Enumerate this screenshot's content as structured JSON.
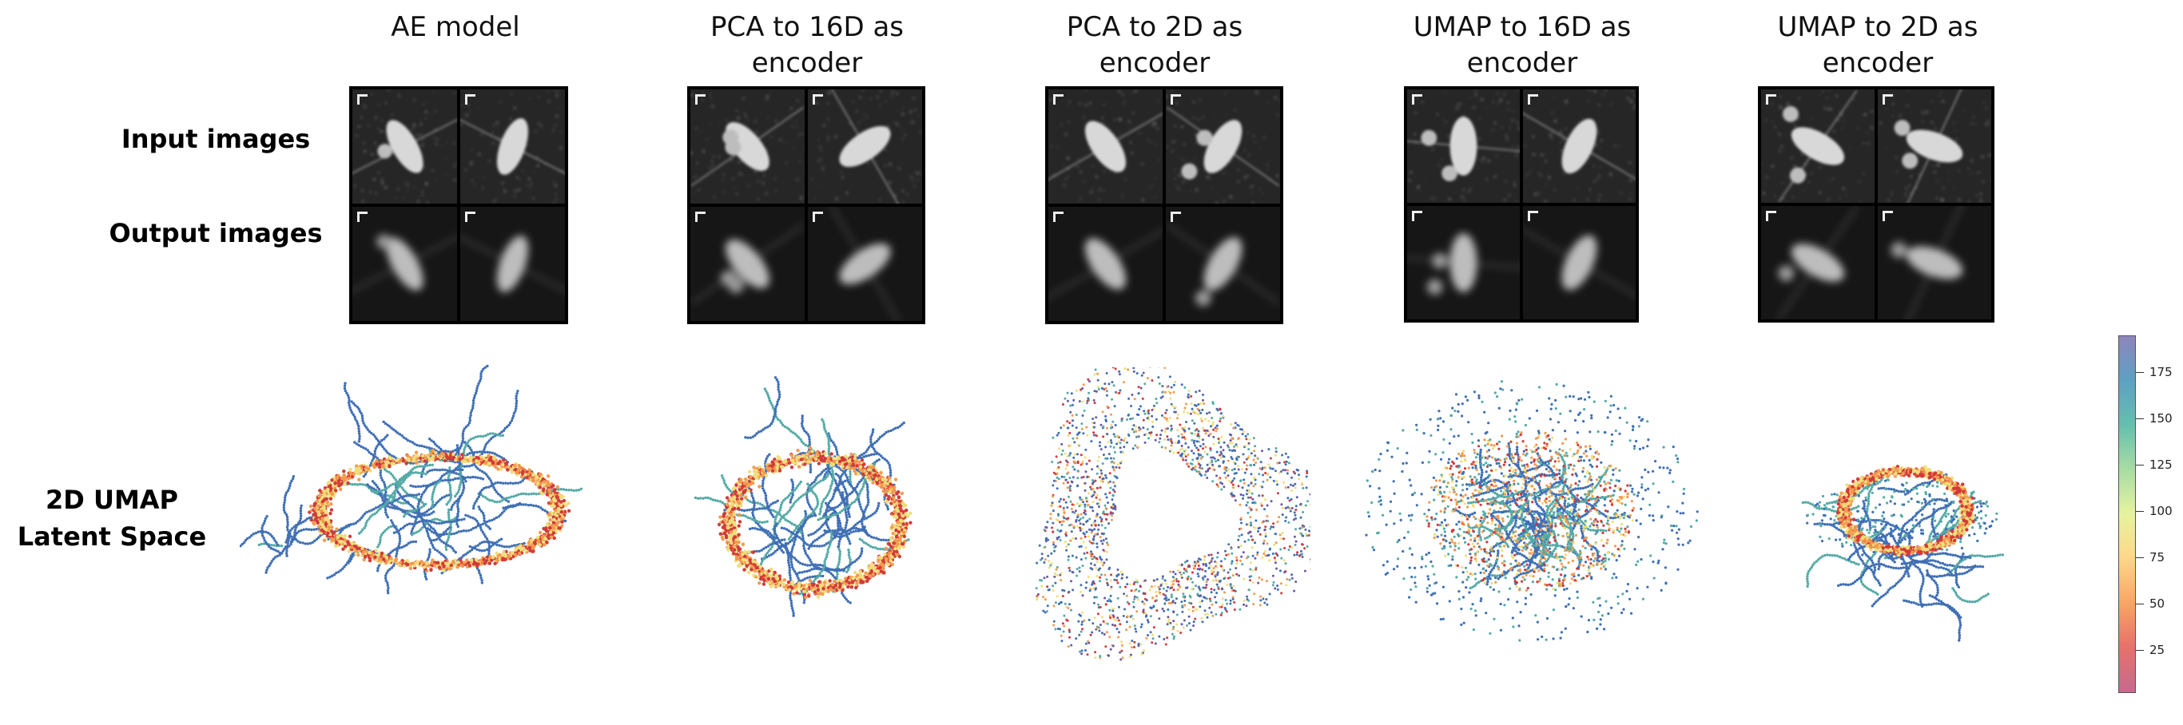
{
  "columns": [
    {
      "title_line1": "AE model",
      "title_line2": ""
    },
    {
      "title_line1": "PCA to 16D as",
      "title_line2": "encoder"
    },
    {
      "title_line1": "PCA to 2D as",
      "title_line2": "encoder"
    },
    {
      "title_line1": "UMAP to 16D as",
      "title_line2": "encoder"
    },
    {
      "title_line1": "UMAP to 2D as",
      "title_line2": "encoder"
    }
  ],
  "row_labels": {
    "input": "Input images",
    "output": "Output images",
    "latent_line1": "2D UMAP",
    "latent_line2": "Latent Space"
  },
  "colorbar": {
    "ticks": [
      "175",
      "150",
      "125",
      "100",
      "75",
      "50",
      "25"
    ],
    "colormap": "Spectral"
  },
  "colors": {
    "blue": "#3f6fb5",
    "teal": "#55aaa6",
    "yellow": "#f0de7a",
    "orange": "#f39a4f",
    "red": "#d23a3a",
    "purple": "#6a5aa8"
  }
}
